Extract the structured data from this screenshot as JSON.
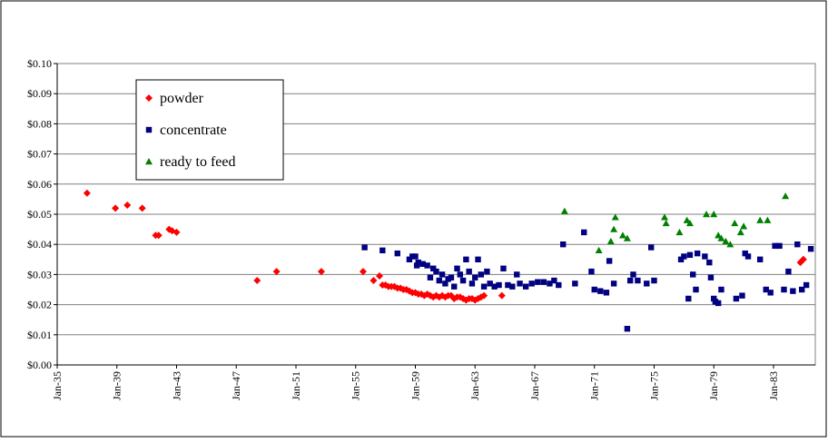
{
  "chart_data": {
    "type": "scatter",
    "xlim": [
      1935,
      1985.8
    ],
    "xticks": [
      {
        "value": 1935,
        "label": "Jan-35"
      },
      {
        "value": 1939,
        "label": "Jan-39"
      },
      {
        "value": 1943,
        "label": "Jan-43"
      },
      {
        "value": 1947,
        "label": "Jan-47"
      },
      {
        "value": 1951,
        "label": "Jan-51"
      },
      {
        "value": 1955,
        "label": "Jan-55"
      },
      {
        "value": 1959,
        "label": "Jan-59"
      },
      {
        "value": 1963,
        "label": "Jan-63"
      },
      {
        "value": 1967,
        "label": "Jan-67"
      },
      {
        "value": 1971,
        "label": "Jan-71"
      },
      {
        "value": 1975,
        "label": "Jan-75"
      },
      {
        "value": 1979,
        "label": "Jan-79"
      },
      {
        "value": 1983,
        "label": "Jan-83"
      }
    ],
    "ylim": [
      0,
      0.1
    ],
    "yticks": [
      {
        "value": 0,
        "label": "$0.00"
      },
      {
        "value": 0.01,
        "label": "$0.01"
      },
      {
        "value": 0.02,
        "label": "$0.02"
      },
      {
        "value": 0.03,
        "label": "$0.03"
      },
      {
        "value": 0.04,
        "label": "$0.04"
      },
      {
        "value": 0.05,
        "label": "$0.05"
      },
      {
        "value": 0.06,
        "label": "$0.06"
      },
      {
        "value": 0.07,
        "label": "$0.07"
      },
      {
        "value": 0.08,
        "label": "$0.08"
      },
      {
        "value": 0.09,
        "label": "$0.09"
      },
      {
        "value": 0.1,
        "label": "$0.10"
      }
    ],
    "grid": true,
    "legend": "upper left",
    "series": [
      {
        "name": "powder",
        "color": "#ff0000",
        "marker": "diamond",
        "x": [
          1937.0,
          1938.9,
          1939.7,
          1940.7,
          1941.6,
          1941.8,
          1942.5,
          1942.7,
          1943.0,
          1948.4,
          1949.7,
          1952.7,
          1955.5,
          1956.2,
          1956.6,
          1956.8,
          1957.0,
          1957.2,
          1957.4,
          1957.6,
          1957.8,
          1958.0,
          1958.2,
          1958.4,
          1958.6,
          1958.8,
          1959.0,
          1959.2,
          1959.4,
          1959.6,
          1959.8,
          1960.0,
          1960.2,
          1960.4,
          1960.6,
          1960.8,
          1961.0,
          1961.2,
          1961.4,
          1961.6,
          1961.8,
          1962.0,
          1962.2,
          1962.4,
          1962.6,
          1962.8,
          1963.0,
          1963.2,
          1963.4,
          1963.6,
          1964.8,
          1984.8,
          1985.0
        ],
        "values": [
          0.057,
          0.052,
          0.053,
          0.052,
          0.043,
          0.043,
          0.045,
          0.0445,
          0.044,
          0.028,
          0.031,
          0.031,
          0.031,
          0.028,
          0.0295,
          0.0265,
          0.0265,
          0.026,
          0.026,
          0.026,
          0.0255,
          0.0255,
          0.025,
          0.025,
          0.0245,
          0.024,
          0.024,
          0.0235,
          0.0235,
          0.023,
          0.0235,
          0.023,
          0.0225,
          0.023,
          0.0225,
          0.023,
          0.0225,
          0.023,
          0.023,
          0.022,
          0.0225,
          0.0225,
          0.022,
          0.0215,
          0.022,
          0.022,
          0.0215,
          0.022,
          0.0225,
          0.023,
          0.023,
          0.034,
          0.035
        ]
      },
      {
        "name": "concentrate",
        "color": "#000080",
        "marker": "square",
        "x": [
          1955.6,
          1956.8,
          1957.8,
          1958.6,
          1958.8,
          1959.0,
          1959.2,
          1959.1,
          1959.5,
          1959.8,
          1960.0,
          1960.2,
          1960.4,
          1960.6,
          1960.8,
          1961.0,
          1961.2,
          1961.4,
          1961.6,
          1961.8,
          1962.0,
          1962.2,
          1962.4,
          1962.6,
          1962.8,
          1963.0,
          1963.2,
          1963.4,
          1963.6,
          1963.8,
          1964.0,
          1964.3,
          1964.6,
          1964.9,
          1965.2,
          1965.5,
          1965.8,
          1966.0,
          1966.4,
          1966.8,
          1967.2,
          1967.6,
          1968.0,
          1968.3,
          1968.6,
          1968.9,
          1969.7,
          1970.3,
          1970.8,
          1971.0,
          1971.4,
          1971.8,
          1972.0,
          1972.3,
          1973.2,
          1973.4,
          1973.6,
          1973.9,
          1974.5,
          1974.8,
          1975.0,
          1976.8,
          1977.0,
          1977.3,
          1977.4,
          1977.6,
          1977.8,
          1977.9,
          1978.4,
          1978.7,
          1978.8,
          1979.0,
          1979.1,
          1979.3,
          1979.5,
          1980.5,
          1980.9,
          1981.1,
          1981.3,
          1982.1,
          1982.5,
          1982.8,
          1983.1,
          1983.4,
          1983.7,
          1984.0,
          1984.3,
          1984.6,
          1984.9,
          1985.2,
          1985.5
        ],
        "values": [
          0.039,
          0.038,
          0.037,
          0.035,
          0.036,
          0.036,
          0.034,
          0.033,
          0.0335,
          0.033,
          0.029,
          0.032,
          0.031,
          0.028,
          0.03,
          0.027,
          0.0285,
          0.029,
          0.026,
          0.032,
          0.03,
          0.028,
          0.035,
          0.031,
          0.027,
          0.029,
          0.035,
          0.03,
          0.026,
          0.031,
          0.027,
          0.026,
          0.0265,
          0.032,
          0.0265,
          0.026,
          0.03,
          0.027,
          0.026,
          0.027,
          0.0275,
          0.0275,
          0.027,
          0.028,
          0.0265,
          0.04,
          0.027,
          0.044,
          0.031,
          0.025,
          0.0245,
          0.024,
          0.0345,
          0.027,
          0.012,
          0.028,
          0.03,
          0.028,
          0.027,
          0.039,
          0.028,
          0.035,
          0.036,
          0.022,
          0.0365,
          0.03,
          0.025,
          0.037,
          0.036,
          0.034,
          0.029,
          0.022,
          0.021,
          0.0205,
          0.025,
          0.022,
          0.023,
          0.037,
          0.036,
          0.035,
          0.025,
          0.024,
          0.0395,
          0.0395,
          0.025,
          0.031,
          0.0245,
          0.04,
          0.025,
          0.0265,
          0.0385
        ]
      },
      {
        "name": "ready to feed",
        "color": "#008000",
        "marker": "triangle",
        "x": [
          1969.0,
          1971.3,
          1972.1,
          1972.3,
          1972.4,
          1972.9,
          1973.2,
          1975.7,
          1975.8,
          1976.7,
          1977.2,
          1977.4,
          1978.5,
          1979.0,
          1979.3,
          1979.5,
          1979.8,
          1980.1,
          1980.4,
          1980.8,
          1981.0,
          1982.1,
          1982.6,
          1983.8
        ],
        "values": [
          0.051,
          0.038,
          0.041,
          0.045,
          0.049,
          0.043,
          0.042,
          0.049,
          0.047,
          0.044,
          0.048,
          0.047,
          0.05,
          0.05,
          0.043,
          0.042,
          0.041,
          0.04,
          0.047,
          0.044,
          0.046,
          0.048,
          0.048,
          0.056
        ]
      }
    ]
  }
}
